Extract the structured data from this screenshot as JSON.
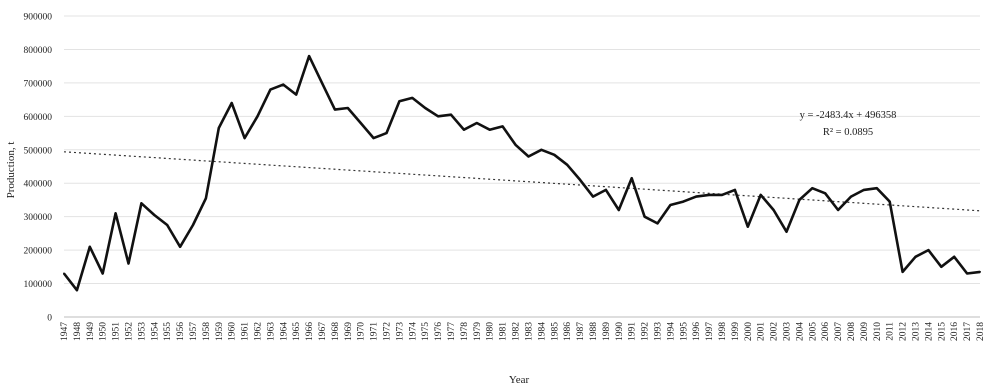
{
  "chart_data": {
    "type": "line",
    "xlabel": "Year",
    "ylabel": "Production, t",
    "ylim": [
      0,
      900000
    ],
    "yticks": [
      0,
      100000,
      200000,
      300000,
      400000,
      500000,
      600000,
      700000,
      800000,
      900000
    ],
    "grid": true,
    "x": [
      1947,
      1948,
      1949,
      1950,
      1951,
      1952,
      1953,
      1954,
      1955,
      1956,
      1957,
      1958,
      1959,
      1960,
      1961,
      1962,
      1963,
      1964,
      1965,
      1966,
      1967,
      1968,
      1969,
      1970,
      1971,
      1972,
      1973,
      1974,
      1975,
      1976,
      1977,
      1978,
      1979,
      1980,
      1981,
      1982,
      1983,
      1984,
      1985,
      1986,
      1987,
      1988,
      1989,
      1990,
      1991,
      1992,
      1993,
      1994,
      1995,
      1996,
      1997,
      1998,
      1999,
      2000,
      2001,
      2002,
      2003,
      2004,
      2005,
      2006,
      2007,
      2008,
      2009,
      2010,
      2011,
      2012,
      2013,
      2014,
      2015,
      2016,
      2017,
      2018
    ],
    "series": [
      {
        "values": [
          130000,
          80000,
          210000,
          130000,
          310000,
          160000,
          340000,
          305000,
          275000,
          210000,
          275000,
          355000,
          565000,
          640000,
          535000,
          600000,
          680000,
          695000,
          665000,
          780000,
          700000,
          620000,
          625000,
          580000,
          535000,
          550000,
          645000,
          655000,
          625000,
          600000,
          605000,
          560000,
          580000,
          560000,
          570000,
          515000,
          480000,
          500000,
          485000,
          455000,
          410000,
          360000,
          380000,
          320000,
          415000,
          300000,
          280000,
          335000,
          345000,
          360000,
          365000,
          365000,
          380000,
          270000,
          365000,
          320000,
          255000,
          350000,
          385000,
          370000,
          320000,
          360000,
          380000,
          385000,
          345000,
          135000,
          180000,
          200000,
          150000,
          180000,
          130000,
          135000
        ]
      }
    ],
    "trendline": {
      "equation": "y = -2483.4x + 496358",
      "r_squared": "R² = 0.0895",
      "slope": -2483.4,
      "intercept": 496358
    }
  }
}
